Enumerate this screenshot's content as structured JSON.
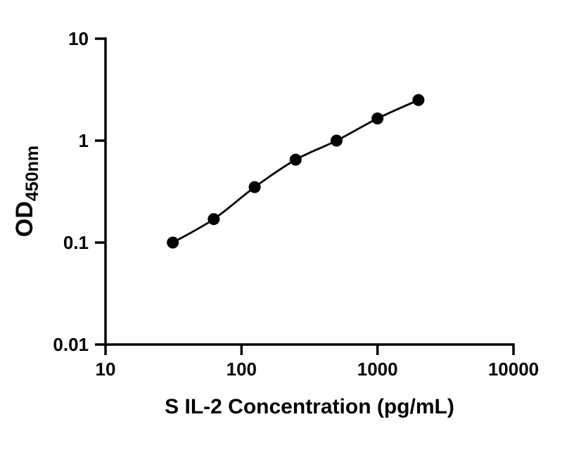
{
  "figure": {
    "background_color": "#ffffff"
  },
  "chart_data": {
    "type": "scatter",
    "title": "",
    "xlabel": "S IL-2 Concentration (pg/mL)",
    "ylabel": "OD",
    "ylabel_sub": "450nm",
    "x_scale": "log10",
    "y_scale": "log10",
    "xlim": [
      10,
      10000
    ],
    "ylim": [
      0.01,
      10
    ],
    "x_ticks": [
      10,
      100,
      1000,
      10000
    ],
    "x_tick_labels": [
      "10",
      "100",
      "1000",
      "10000"
    ],
    "y_ticks": [
      0.01,
      0.1,
      1,
      10
    ],
    "y_tick_labels": [
      "0.01",
      "0.1",
      "1",
      "10"
    ],
    "grid": false,
    "legend": false,
    "axis_color": "#000000",
    "series": [
      {
        "marker": "filled-circle",
        "marker_color": "#000000",
        "line_color": "#000000",
        "curve": "smooth-fit",
        "points": [
          {
            "x": 31.25,
            "y": 0.1
          },
          {
            "x": 62.5,
            "y": 0.17
          },
          {
            "x": 125,
            "y": 0.35
          },
          {
            "x": 250,
            "y": 0.65
          },
          {
            "x": 500,
            "y": 1.0
          },
          {
            "x": 1000,
            "y": 1.65
          },
          {
            "x": 2000,
            "y": 2.5
          }
        ]
      }
    ]
  }
}
